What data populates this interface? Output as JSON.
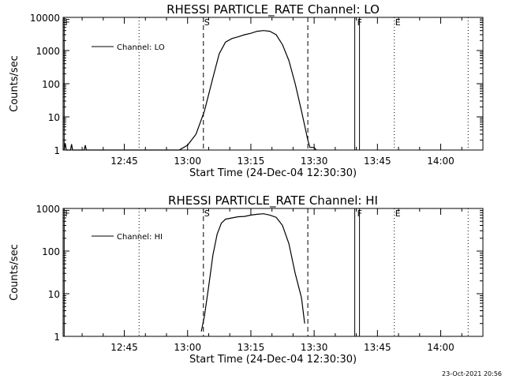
{
  "chart_data": [
    {
      "type": "line",
      "title": "RHESSI PARTICLE_RATE Channel: LO",
      "xlabel": "Start Time (24-Dec-04 12:30:30)",
      "ylabel": "Counts/sec",
      "ylog": true,
      "ylim": [
        1,
        10000
      ],
      "xlim": [
        "12:30:30",
        "14:10:00"
      ],
      "x_ticks": [
        "12:45",
        "13:00",
        "13:15",
        "13:30",
        "13:45",
        "14:00"
      ],
      "y_ticks": [
        "1",
        "10",
        "100",
        "1000",
        "10000"
      ],
      "legend": {
        "position": "top-left",
        "entries": [
          "Channel: LO"
        ]
      },
      "series": [
        {
          "name": "Channel: LO",
          "x": [
            "12:30:45",
            "12:31:00",
            "12:31:15",
            "12:32:15",
            "12:32:30",
            "12:32:45",
            "12:35:30",
            "12:35:45",
            "12:36:00",
            "12:58:00",
            "13:00:00",
            "13:02:00",
            "13:04:00",
            "13:06:00",
            "13:07:30",
            "13:09:00",
            "13:10:30",
            "13:12:00",
            "13:13:30",
            "13:15:00",
            "13:16:30",
            "13:18:00",
            "13:19:30",
            "13:21:00",
            "13:22:30",
            "13:24:00",
            "13:25:30",
            "13:27:00",
            "13:28:30",
            "13:29:00",
            "13:29:30",
            "13:30:00",
            "13:30:30"
          ],
          "values": [
            1,
            1.6,
            1,
            1,
            1.5,
            1,
            1,
            1.4,
            1,
            1,
            1.4,
            3,
            15,
            150,
            800,
            1800,
            2300,
            2600,
            3000,
            3300,
            3800,
            4000,
            3800,
            3000,
            1500,
            500,
            100,
            15,
            2,
            1.2,
            1.2,
            1.2,
            1
          ]
        }
      ],
      "markers": [
        {
          "label": "F",
          "time": "12:30:45",
          "style": "solid"
        },
        {
          "label": "S",
          "time": "13:03:45",
          "style": "dashed"
        },
        {
          "label": "",
          "time": "13:28:30",
          "style": "dashed"
        },
        {
          "label": "F",
          "time": "13:40:00",
          "style": "solid-pair"
        },
        {
          "label": "E",
          "time": "13:49:00",
          "style": "dotted"
        },
        {
          "label": "",
          "time": "12:48:30",
          "style": "dotted"
        },
        {
          "label": "",
          "time": "14:06:30",
          "style": "dotted"
        }
      ]
    },
    {
      "type": "line",
      "title": "RHESSI PARTICLE_RATE Channel: HI",
      "xlabel": "Start Time (24-Dec-04 12:30:30)",
      "ylabel": "Counts/sec",
      "ylog": true,
      "ylim": [
        1,
        1000
      ],
      "xlim": [
        "12:30:30",
        "14:10:00"
      ],
      "x_ticks": [
        "12:45",
        "13:00",
        "13:15",
        "13:30",
        "13:45",
        "14:00"
      ],
      "y_ticks": [
        "1",
        "10",
        "100",
        "1000"
      ],
      "legend": {
        "position": "top-left",
        "entries": [
          "Channel: HI"
        ]
      },
      "series": [
        {
          "name": "Channel: HI",
          "x": [
            "13:03:15",
            "13:04:00",
            "13:05:00",
            "13:06:00",
            "13:07:00",
            "13:08:00",
            "13:09:00",
            "13:10:30",
            "13:12:00",
            "13:13:30",
            "13:15:00",
            "13:16:30",
            "13:18:00",
            "13:19:30",
            "13:21:00",
            "13:22:30",
            "13:24:00",
            "13:25:30",
            "13:27:00",
            "13:27:45"
          ],
          "values": [
            1.3,
            3,
            15,
            80,
            250,
            450,
            560,
            600,
            640,
            650,
            700,
            730,
            750,
            700,
            620,
            400,
            150,
            30,
            8,
            2
          ]
        }
      ],
      "markers": [
        {
          "label": "F",
          "time": "12:30:45",
          "style": "solid"
        },
        {
          "label": "S",
          "time": "13:03:45",
          "style": "dashed"
        },
        {
          "label": "",
          "time": "13:28:30",
          "style": "dashed"
        },
        {
          "label": "F",
          "time": "13:40:00",
          "style": "solid-pair"
        },
        {
          "label": "E",
          "time": "13:49:00",
          "style": "dotted"
        },
        {
          "label": "",
          "time": "12:48:30",
          "style": "dotted"
        },
        {
          "label": "",
          "time": "14:06:30",
          "style": "dotted"
        }
      ]
    }
  ],
  "timestamp": "23-Oct-2021 20:56"
}
